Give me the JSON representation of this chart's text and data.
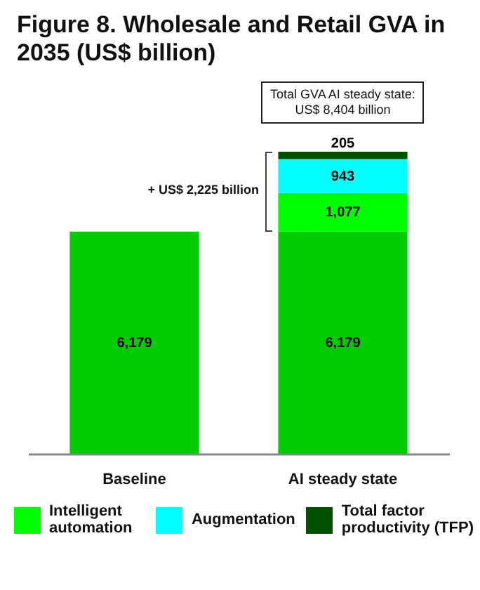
{
  "chart_data": {
    "type": "bar",
    "title": "Figure 8. Wholesale and Retail GVA in 2035 (US$ billion)",
    "categories": [
      "Baseline",
      "AI steady state"
    ],
    "stacked": true,
    "legend": "bottom",
    "series": [
      {
        "color": "#00cc00",
        "values": [
          6179,
          6179
        ],
        "value_labels": [
          "6,179",
          "6,179"
        ]
      },
      {
        "name": "Intelligent automation",
        "color": "#00ff00",
        "values": [
          null,
          1077
        ],
        "value_labels": [
          null,
          "1,077"
        ]
      },
      {
        "name": "Augmentation",
        "color": "#00ffff",
        "values": [
          null,
          943
        ],
        "value_labels": [
          null,
          "943"
        ]
      },
      {
        "name": "Total factor productivity (TFP)",
        "color": "#005000",
        "values": [
          null,
          205
        ],
        "value_labels": [
          null,
          "205"
        ]
      }
    ],
    "annotations": [
      "Total GVA AI steady state: US$ 8,404 billion",
      "+ US$ 2,225 billion"
    ]
  }
}
